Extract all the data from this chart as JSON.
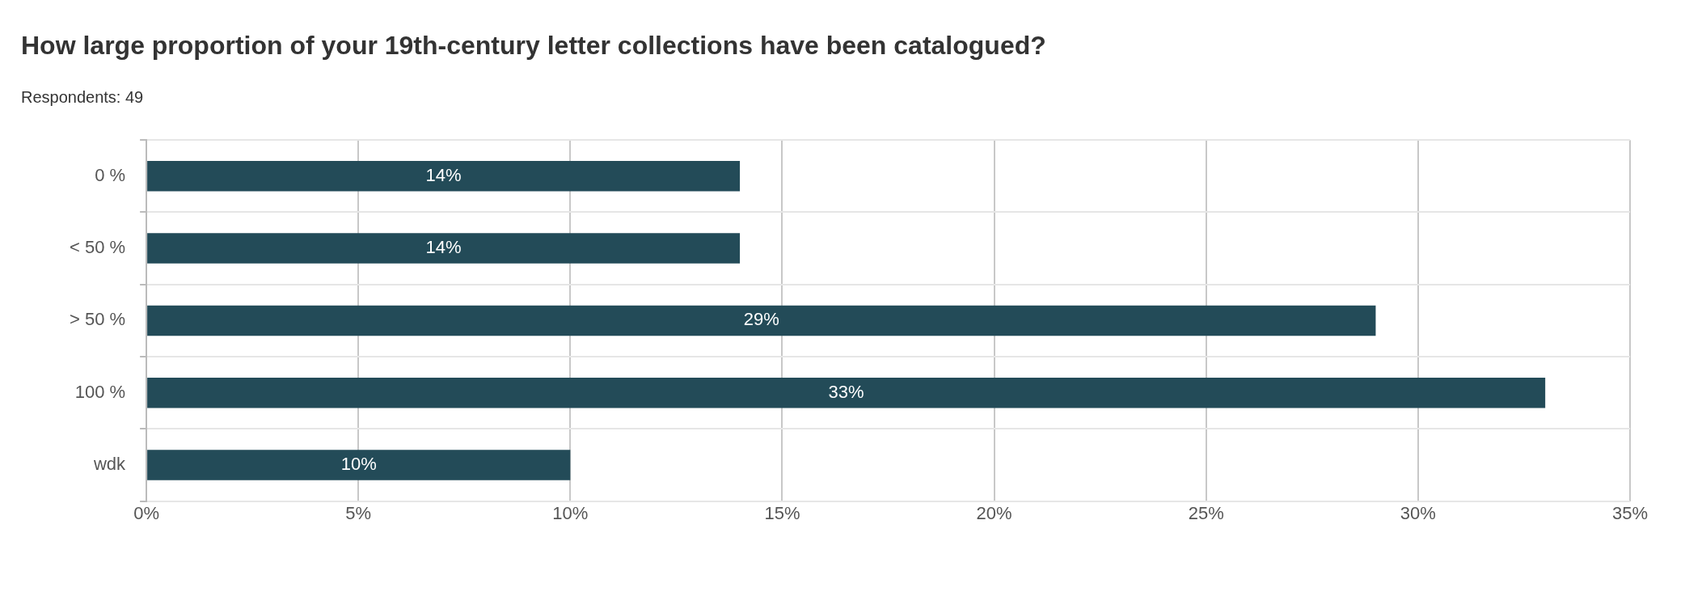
{
  "chart_data": {
    "type": "bar",
    "orientation": "horizontal",
    "title": "How large proportion of your 19th-century letter collections have been catalogued?",
    "subtitle": "Respondents: 49",
    "categories": [
      "0 %",
      "< 50 %",
      "> 50 %",
      "100 %",
      "wdk"
    ],
    "values": [
      14,
      14,
      29,
      33,
      10
    ],
    "value_labels": [
      "14%",
      "14%",
      "29%",
      "33%",
      "10%"
    ],
    "color": "#234b58",
    "xlim": [
      0,
      35
    ],
    "xticks": [
      {
        "value": 0,
        "label": "0%"
      },
      {
        "value": 5,
        "label": "5%"
      },
      {
        "value": 10,
        "label": "10%"
      },
      {
        "value": 15,
        "label": "15%"
      },
      {
        "value": 20,
        "label": "20%"
      },
      {
        "value": 25,
        "label": "25%"
      },
      {
        "value": 30,
        "label": "30%"
      },
      {
        "value": 35,
        "label": "35%"
      }
    ],
    "grid": true,
    "legend": false
  }
}
